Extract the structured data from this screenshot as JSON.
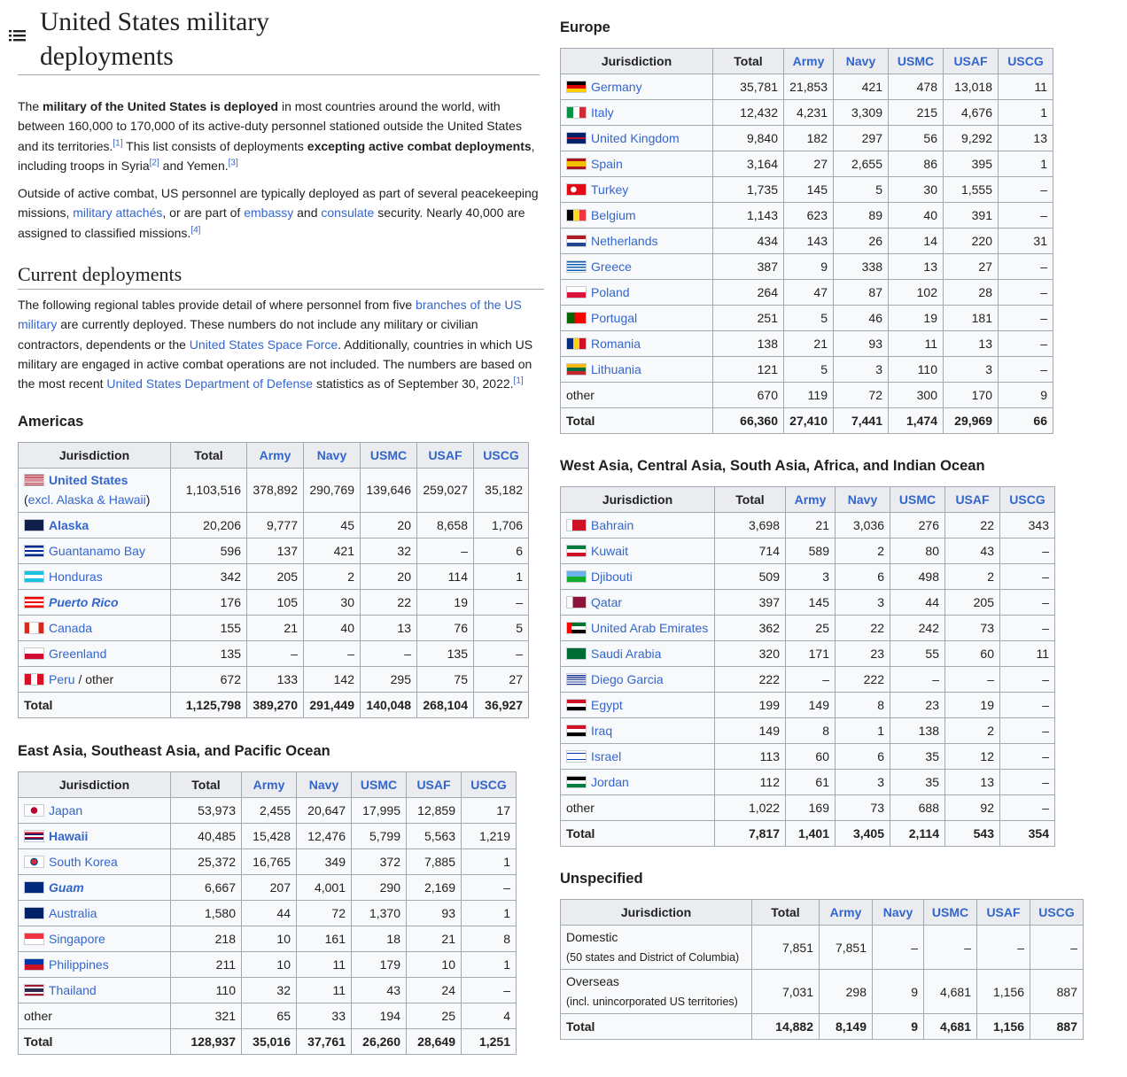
{
  "title": "United States military deployments",
  "intro": {
    "p1": {
      "a": "The ",
      "b": "military of the United States is deployed",
      "c": " in most countries around the world, with between 160,000 to 170,000 of its active-duty personnel stationed outside the United States and its territories.",
      "ref1": "[1]",
      "d": " This list consists of deployments ",
      "e": "excepting active combat deployments",
      "f": ", including troops in Syria",
      "ref2": "[2]",
      "g": " and Yemen.",
      "ref3": "[3]"
    },
    "p2": {
      "a": "Outside of active combat, US personnel are typically deployed as part of several peacekeeping missions, ",
      "link1": "military attachés",
      "b": ", or are part of ",
      "link2": "embassy",
      "c": " and ",
      "link3": "consulate",
      "d": " security. Nearly 40,000 are assigned to classified missions.",
      "ref": "[4]"
    }
  },
  "current": {
    "heading": "Current deployments",
    "p": {
      "a": "The following regional tables provide detail of where personnel from five ",
      "link1": "branches of the US military",
      "b": " are currently deployed. These numbers do not include any military or civilian contractors, dependents or the ",
      "link2": "United States Space Force",
      "c": ". Additionally, countries in which US military are engaged in active combat operations are not included. The numbers are based on the most recent ",
      "link3": "United States Department of Defense",
      "d": " statistics as of September 30, 2022.",
      "ref": "[1]"
    }
  },
  "headers": [
    "Jurisdiction",
    "Total",
    "Army",
    "Navy",
    "USMC",
    "USAF",
    "USCG"
  ],
  "icons": {
    "toc": "list-icon"
  },
  "tables": {
    "americas": {
      "title": "Americas",
      "rows": [
        {
          "name": "United States",
          "sub": "(",
          "sub_link": "excl. Alaska & Hawaii",
          "sub_end": ")",
          "style": "bold-link",
          "flag": "us",
          "v": [
            "1,103,516",
            "378,892",
            "290,769",
            "139,646",
            "259,027",
            "35,182"
          ]
        },
        {
          "name": "Alaska",
          "style": "bold-link",
          "flag": "ak",
          "v": [
            "20,206",
            "9,777",
            "45",
            "20",
            "8,658",
            "1,706"
          ]
        },
        {
          "name": "Guantanamo Bay",
          "style": "link",
          "flag": "cu",
          "v": [
            "596",
            "137",
            "421",
            "32",
            "–",
            "6"
          ]
        },
        {
          "name": "Honduras",
          "style": "link",
          "flag": "hn",
          "v": [
            "342",
            "205",
            "2",
            "20",
            "114",
            "1"
          ]
        },
        {
          "name": "Puerto Rico",
          "style": "bold-italic-link",
          "flag": "pr",
          "v": [
            "176",
            "105",
            "30",
            "22",
            "19",
            "–"
          ]
        },
        {
          "name": "Canada",
          "style": "link",
          "flag": "ca",
          "v": [
            "155",
            "21",
            "40",
            "13",
            "76",
            "5"
          ]
        },
        {
          "name": "Greenland",
          "style": "link",
          "flag": "gl",
          "v": [
            "135",
            "–",
            "–",
            "–",
            "135",
            "–"
          ]
        },
        {
          "name": "Peru",
          "extra": " / other",
          "style": "link",
          "flag": "pe",
          "v": [
            "672",
            "133",
            "142",
            "295",
            "75",
            "27"
          ]
        }
      ],
      "total": {
        "name": "Total",
        "v": [
          "1,125,798",
          "389,270",
          "291,449",
          "140,048",
          "268,104",
          "36,927"
        ]
      }
    },
    "asia_pacific": {
      "title": "East Asia, Southeast Asia, and Pacific Ocean",
      "rows": [
        {
          "name": "Japan",
          "style": "link",
          "flag": "jp",
          "v": [
            "53,973",
            "2,455",
            "20,647",
            "17,995",
            "12,859",
            "17"
          ]
        },
        {
          "name": "Hawaii",
          "style": "bold-link",
          "flag": "hi",
          "v": [
            "40,485",
            "15,428",
            "12,476",
            "5,799",
            "5,563",
            "1,219"
          ]
        },
        {
          "name": "South Korea",
          "style": "link",
          "flag": "kr",
          "v": [
            "25,372",
            "16,765",
            "349",
            "372",
            "7,885",
            "1"
          ]
        },
        {
          "name": "Guam",
          "style": "bold-italic-link",
          "flag": "gu",
          "v": [
            "6,667",
            "207",
            "4,001",
            "290",
            "2,169",
            "–"
          ]
        },
        {
          "name": "Australia",
          "style": "link",
          "flag": "au",
          "v": [
            "1,580",
            "44",
            "72",
            "1,370",
            "93",
            "1"
          ]
        },
        {
          "name": "Singapore",
          "style": "link",
          "flag": "sg",
          "v": [
            "218",
            "10",
            "161",
            "18",
            "21",
            "8"
          ]
        },
        {
          "name": "Philippines",
          "style": "link",
          "flag": "ph",
          "v": [
            "211",
            "10",
            "11",
            "179",
            "10",
            "1"
          ]
        },
        {
          "name": "Thailand",
          "style": "link",
          "flag": "th",
          "v": [
            "110",
            "32",
            "11",
            "43",
            "24",
            "–"
          ]
        },
        {
          "name": "other",
          "style": "plain",
          "flag": "",
          "v": [
            "321",
            "65",
            "33",
            "194",
            "25",
            "4"
          ]
        }
      ],
      "total": {
        "name": "Total",
        "v": [
          "128,937",
          "35,016",
          "37,761",
          "26,260",
          "28,649",
          "1,251"
        ]
      }
    },
    "europe": {
      "title": "Europe",
      "rows": [
        {
          "name": "Germany",
          "style": "link",
          "flag": "de",
          "v": [
            "35,781",
            "21,853",
            "421",
            "478",
            "13,018",
            "11"
          ]
        },
        {
          "name": "Italy",
          "style": "link",
          "flag": "it",
          "v": [
            "12,432",
            "4,231",
            "3,309",
            "215",
            "4,676",
            "1"
          ]
        },
        {
          "name": "United Kingdom",
          "style": "link",
          "flag": "gb",
          "v": [
            "9,840",
            "182",
            "297",
            "56",
            "9,292",
            "13"
          ]
        },
        {
          "name": "Spain",
          "style": "link",
          "flag": "es",
          "v": [
            "3,164",
            "27",
            "2,655",
            "86",
            "395",
            "1"
          ]
        },
        {
          "name": "Turkey",
          "style": "link",
          "flag": "tr",
          "v": [
            "1,735",
            "145",
            "5",
            "30",
            "1,555",
            "–"
          ]
        },
        {
          "name": "Belgium",
          "style": "link",
          "flag": "be",
          "v": [
            "1,143",
            "623",
            "89",
            "40",
            "391",
            "–"
          ]
        },
        {
          "name": "Netherlands",
          "style": "link",
          "flag": "nl",
          "v": [
            "434",
            "143",
            "26",
            "14",
            "220",
            "31"
          ]
        },
        {
          "name": "Greece",
          "style": "link",
          "flag": "gr",
          "v": [
            "387",
            "9",
            "338",
            "13",
            "27",
            "–"
          ]
        },
        {
          "name": "Poland",
          "style": "link",
          "flag": "pl",
          "v": [
            "264",
            "47",
            "87",
            "102",
            "28",
            "–"
          ]
        },
        {
          "name": "Portugal",
          "style": "link",
          "flag": "pt",
          "v": [
            "251",
            "5",
            "46",
            "19",
            "181",
            "–"
          ]
        },
        {
          "name": "Romania",
          "style": "link",
          "flag": "ro",
          "v": [
            "138",
            "21",
            "93",
            "11",
            "13",
            "–"
          ]
        },
        {
          "name": "Lithuania",
          "style": "link",
          "flag": "lt",
          "v": [
            "121",
            "5",
            "3",
            "110",
            "3",
            "–"
          ]
        },
        {
          "name": "other",
          "style": "plain",
          "flag": "",
          "v": [
            "670",
            "119",
            "72",
            "300",
            "170",
            "9"
          ]
        }
      ],
      "total": {
        "name": "Total",
        "v": [
          "66,360",
          "27,410",
          "7,441",
          "1,474",
          "29,969",
          "66"
        ]
      }
    },
    "west_asia": {
      "title": "West Asia, Central Asia, South Asia, Africa, and Indian Ocean",
      "rows": [
        {
          "name": "Bahrain",
          "style": "link",
          "flag": "bh",
          "v": [
            "3,698",
            "21",
            "3,036",
            "276",
            "22",
            "343"
          ]
        },
        {
          "name": "Kuwait",
          "style": "link",
          "flag": "kw",
          "v": [
            "714",
            "589",
            "2",
            "80",
            "43",
            "–"
          ]
        },
        {
          "name": "Djibouti",
          "style": "link",
          "flag": "dj",
          "v": [
            "509",
            "3",
            "6",
            "498",
            "2",
            "–"
          ]
        },
        {
          "name": "Qatar",
          "style": "link",
          "flag": "qa",
          "v": [
            "397",
            "145",
            "3",
            "44",
            "205",
            "–"
          ]
        },
        {
          "name": "United Arab Emirates",
          "style": "link",
          "flag": "ae",
          "v": [
            "362",
            "25",
            "22",
            "242",
            "73",
            "–"
          ]
        },
        {
          "name": "Saudi Arabia",
          "style": "link",
          "flag": "sa",
          "v": [
            "320",
            "171",
            "23",
            "55",
            "60",
            "11"
          ]
        },
        {
          "name": "Diego Garcia",
          "style": "link",
          "flag": "io",
          "v": [
            "222",
            "–",
            "222",
            "–",
            "–",
            "–"
          ]
        },
        {
          "name": "Egypt",
          "style": "link",
          "flag": "eg",
          "v": [
            "199",
            "149",
            "8",
            "23",
            "19",
            "–"
          ]
        },
        {
          "name": "Iraq",
          "style": "link",
          "flag": "iq",
          "v": [
            "149",
            "8",
            "1",
            "138",
            "2",
            "–"
          ]
        },
        {
          "name": "Israel",
          "style": "link",
          "flag": "il",
          "v": [
            "113",
            "60",
            "6",
            "35",
            "12",
            "–"
          ]
        },
        {
          "name": "Jordan",
          "style": "link",
          "flag": "jo",
          "v": [
            "112",
            "61",
            "3",
            "35",
            "13",
            "–"
          ]
        },
        {
          "name": "other",
          "style": "plain",
          "flag": "",
          "v": [
            "1,022",
            "169",
            "73",
            "688",
            "92",
            "–"
          ]
        }
      ],
      "total": {
        "name": "Total",
        "v": [
          "7,817",
          "1,401",
          "3,405",
          "2,114",
          "543",
          "354"
        ]
      }
    },
    "unspecified": {
      "title": "Unspecified",
      "rows": [
        {
          "name": "Domestic",
          "sub": "(50 states and District of Columbia)",
          "style": "plain",
          "flag": "",
          "v": [
            "7,851",
            "7,851",
            "–",
            "–",
            "–",
            "–"
          ]
        },
        {
          "name": "Overseas",
          "sub": "(incl. unincorporated US territories)",
          "style": "plain",
          "flag": "",
          "v": [
            "7,031",
            "298",
            "9",
            "4,681",
            "1,156",
            "887"
          ]
        }
      ],
      "total": {
        "name": "Total",
        "v": [
          "14,882",
          "8,149",
          "9",
          "4,681",
          "1,156",
          "887"
        ]
      }
    }
  }
}
